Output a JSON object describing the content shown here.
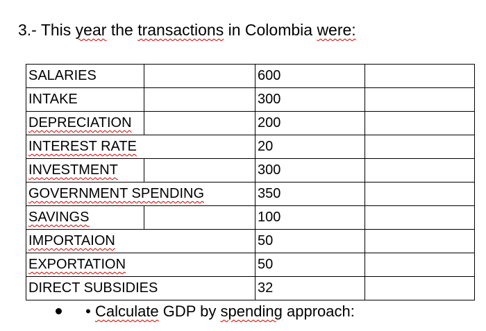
{
  "question": {
    "number": "3.-",
    "text_parts": [
      "This",
      "year",
      "the",
      "transactions",
      "in Colombia",
      "were:"
    ]
  },
  "table": {
    "rows": [
      {
        "label": "SALARIES",
        "value": "600"
      },
      {
        "label": "INTAKE",
        "value": "300"
      },
      {
        "label": "DEPRECIATION",
        "value": "200"
      },
      {
        "label": "INTEREST RATE",
        "value": "20"
      },
      {
        "label": "INVESTMENT",
        "value": "300"
      },
      {
        "label": "GOVERNMENT SPENDING",
        "value": "350"
      },
      {
        "label": "SAVINGS",
        "value": "100"
      },
      {
        "label": "IMPORTAION",
        "value": "50"
      },
      {
        "label": "EXPORTATION",
        "value": "50"
      },
      {
        "label": "DIRECT SUBSIDIES",
        "value": "32"
      }
    ]
  },
  "task": {
    "inner_bullet": "•",
    "parts": [
      "Calculate",
      "GDP by",
      "spending",
      "approach:"
    ]
  }
}
